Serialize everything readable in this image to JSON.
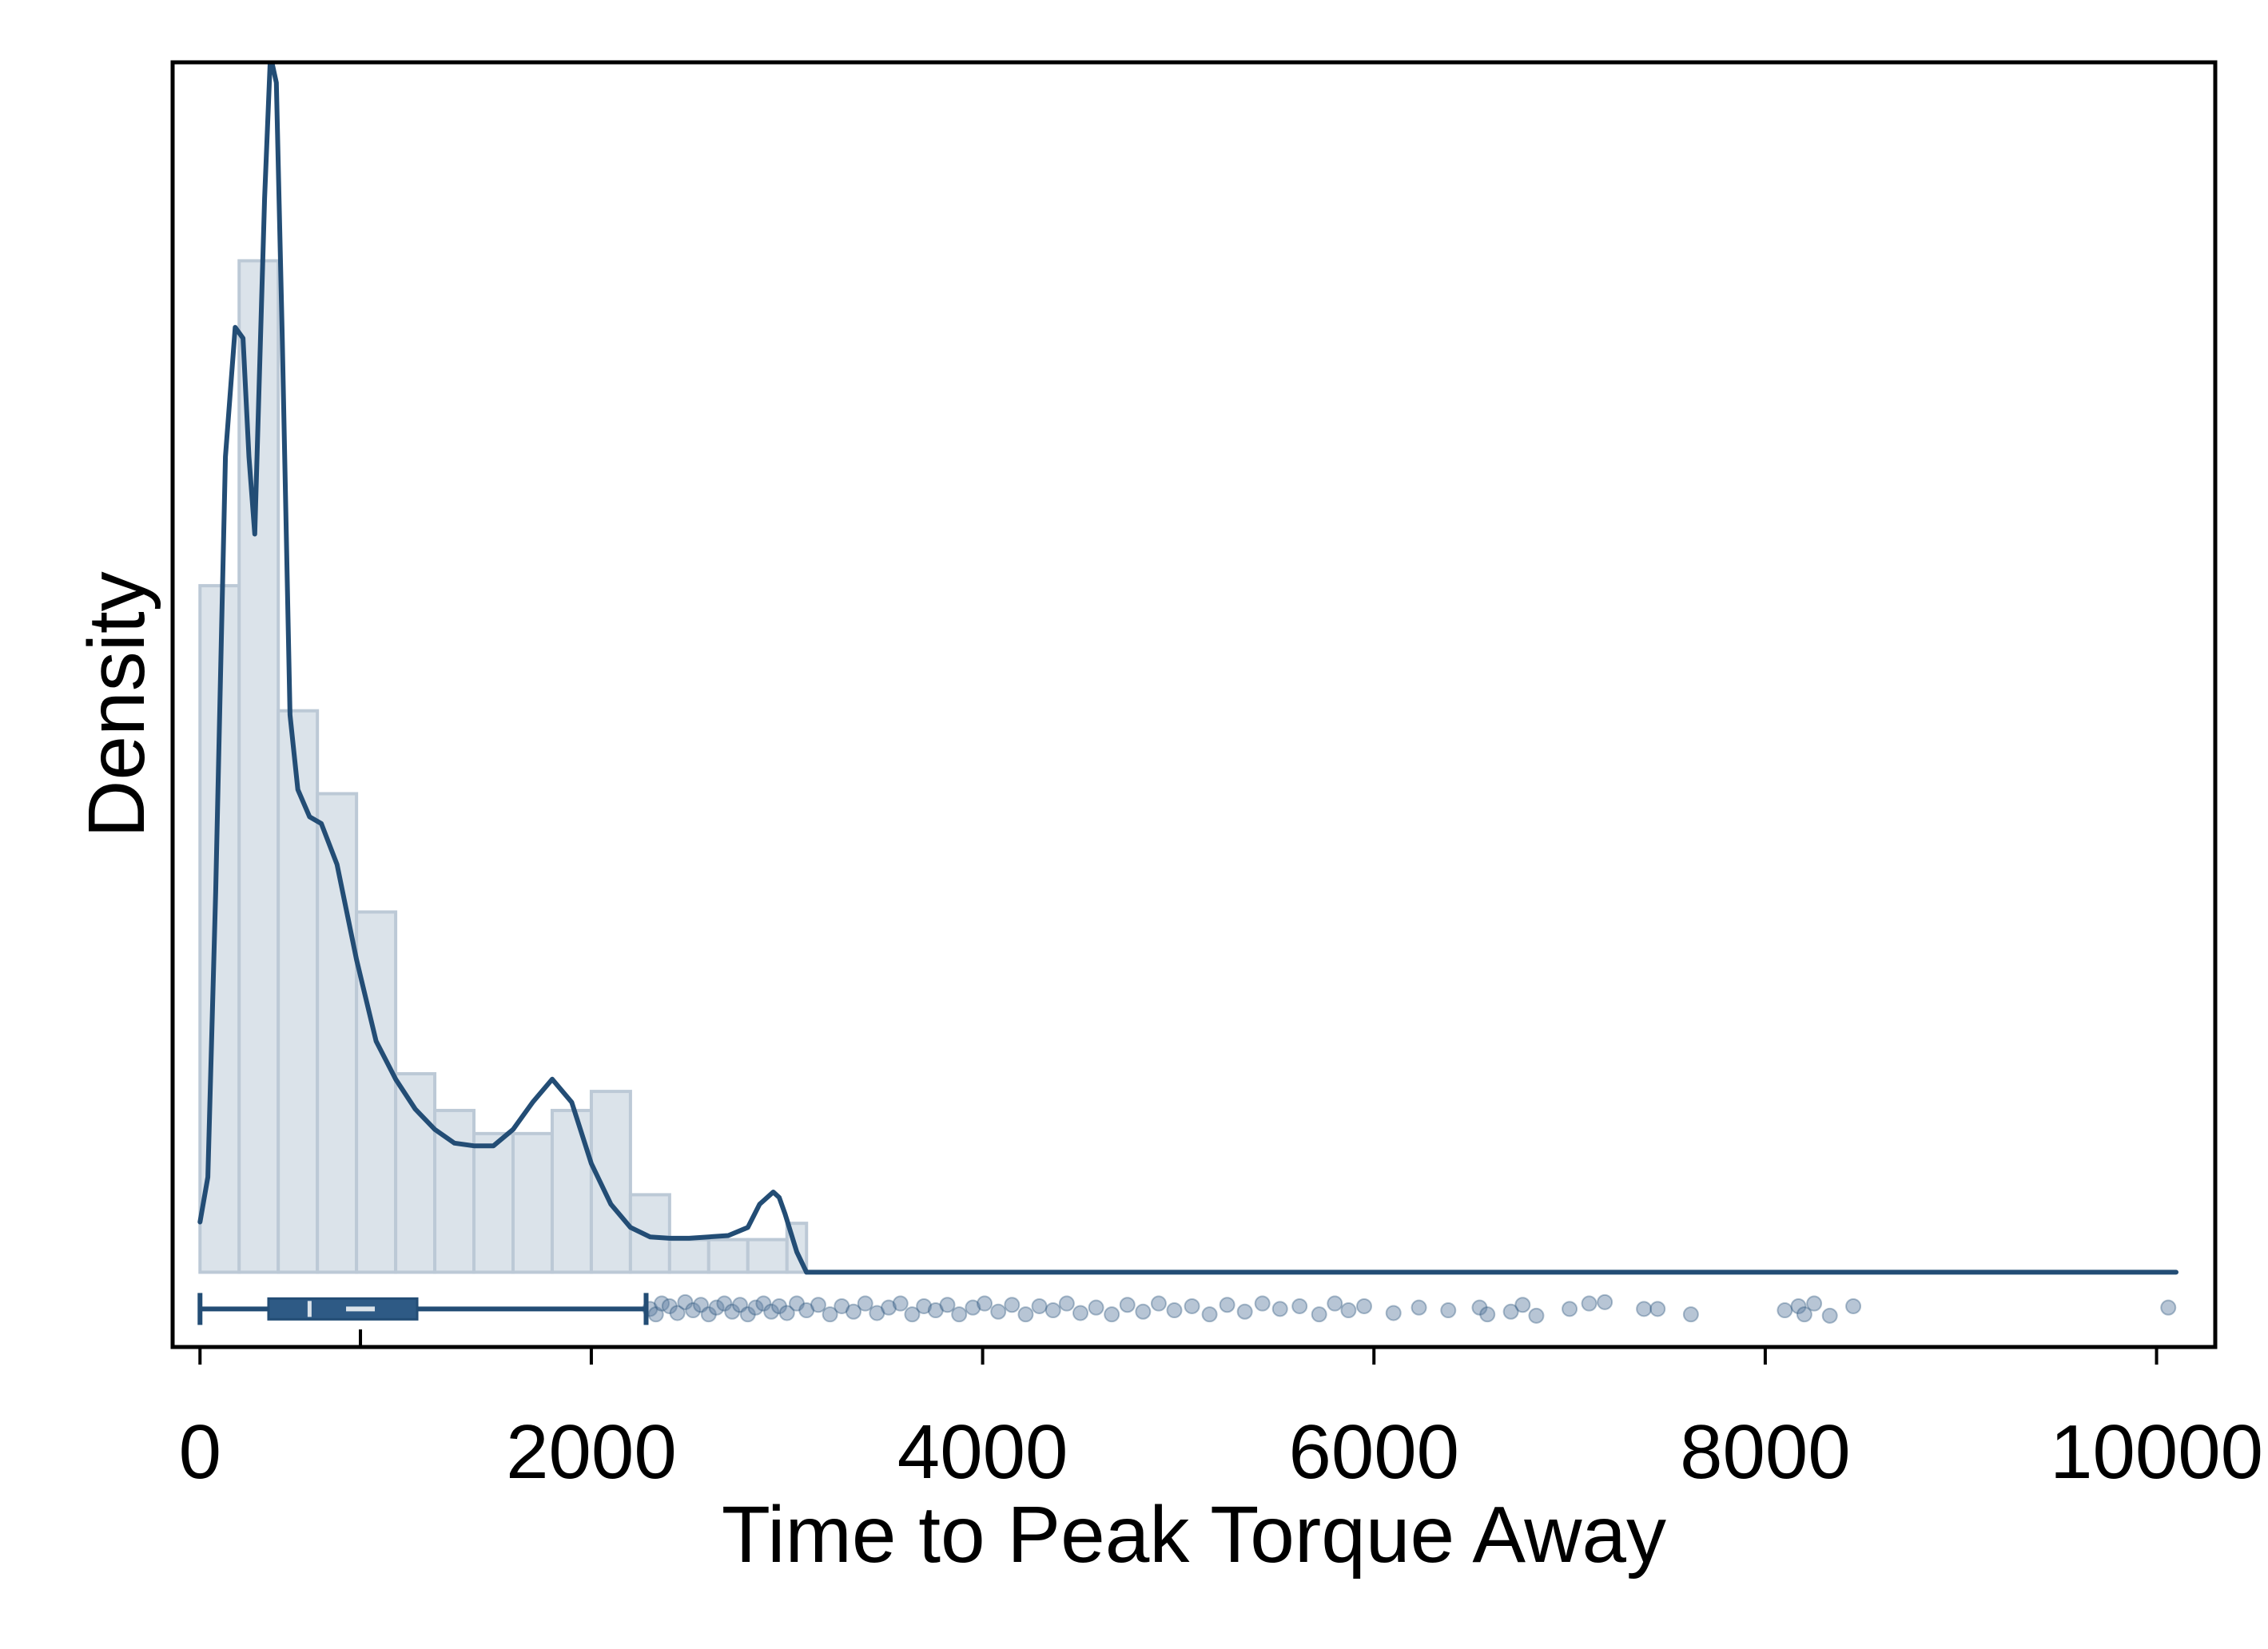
{
  "chart_data": {
    "type": "histogram",
    "xlabel": "Time to Peak Torque Away",
    "ylabel": "Density",
    "xlim": [
      -140,
      10300
    ],
    "ylim": [
      -0.055,
      0.89
    ],
    "x_ticks": [
      0,
      2000,
      4000,
      6000,
      8000,
      10000
    ],
    "x_tick_labels": [
      "0",
      "2000",
      "4000",
      "6000",
      "8000",
      "10000"
    ],
    "y_ticks_shown": false,
    "grid": false,
    "legend": "none",
    "colors": {
      "line": "#234d75",
      "bar_fill": "#dbe3ea",
      "bar_stroke": "#bcc9d6",
      "box_fill": "#2e5a85",
      "median_mark": "#dbe3ea",
      "point": "#5f7fa1"
    },
    "histogram": {
      "bin_width": 200,
      "bins": [
        {
          "x0": 0,
          "x1": 200,
          "density": 0.505
        },
        {
          "x0": 200,
          "x1": 400,
          "density": 0.744
        },
        {
          "x0": 400,
          "x1": 600,
          "density": 0.413
        },
        {
          "x0": 600,
          "x1": 800,
          "density": 0.352
        },
        {
          "x0": 800,
          "x1": 1000,
          "density": 0.265
        },
        {
          "x0": 1000,
          "x1": 1200,
          "density": 0.146
        },
        {
          "x0": 1200,
          "x1": 1400,
          "density": 0.119
        },
        {
          "x0": 1400,
          "x1": 1600,
          "density": 0.102
        },
        {
          "x0": 1600,
          "x1": 1800,
          "density": 0.102
        },
        {
          "x0": 1800,
          "x1": 2000,
          "density": 0.119
        },
        {
          "x0": 2000,
          "x1": 2200,
          "density": 0.133
        },
        {
          "x0": 2200,
          "x1": 2400,
          "density": 0.057
        },
        {
          "x0": 2400,
          "x1": 2600,
          "density": 0.024
        },
        {
          "x0": 2600,
          "x1": 2800,
          "density": 0.024
        },
        {
          "x0": 2800,
          "x1": 3000,
          "density": 0.024
        },
        {
          "x0": 3000,
          "x1": 3100,
          "density": 0.036
        }
      ]
    },
    "density_curve": {
      "x": [
        0,
        40,
        80,
        130,
        180,
        220,
        250,
        280,
        330,
        360,
        390,
        420,
        460,
        500,
        560,
        620,
        700,
        800,
        900,
        1000,
        1100,
        1200,
        1300,
        1400,
        1500,
        1600,
        1700,
        1800,
        1900,
        2000,
        2100,
        2200,
        2300,
        2400,
        2500,
        2600,
        2700,
        2800,
        2860,
        2930,
        2960,
        2990,
        3050,
        3100,
        10100
      ],
      "y": [
        0.037,
        0.07,
        0.28,
        0.6,
        0.695,
        0.687,
        0.6,
        0.543,
        0.79,
        0.895,
        0.875,
        0.69,
        0.41,
        0.355,
        0.335,
        0.33,
        0.3,
        0.23,
        0.17,
        0.142,
        0.12,
        0.105,
        0.095,
        0.093,
        0.093,
        0.105,
        0.125,
        0.142,
        0.125,
        0.08,
        0.05,
        0.033,
        0.026,
        0.025,
        0.025,
        0.026,
        0.027,
        0.033,
        0.05,
        0.059,
        0.055,
        0.043,
        0.015,
        0.0,
        0.0
      ]
    },
    "boxplot": {
      "y": -0.027,
      "whisker_low": 0,
      "q1": 350,
      "median": 560,
      "mean": 820,
      "q3": 1110,
      "whisker_high": 2280
    },
    "outliers": {
      "y": -0.027,
      "points": [
        {
          "x": 2300,
          "dy": 0.0
        },
        {
          "x": 2330,
          "dy": -0.004
        },
        {
          "x": 2360,
          "dy": 0.004
        },
        {
          "x": 2400,
          "dy": 0.002
        },
        {
          "x": 2440,
          "dy": -0.003
        },
        {
          "x": 2480,
          "dy": 0.005
        },
        {
          "x": 2520,
          "dy": -0.001
        },
        {
          "x": 2560,
          "dy": 0.003
        },
        {
          "x": 2600,
          "dy": -0.004
        },
        {
          "x": 2640,
          "dy": 0.001
        },
        {
          "x": 2680,
          "dy": 0.004
        },
        {
          "x": 2720,
          "dy": -0.002
        },
        {
          "x": 2760,
          "dy": 0.003
        },
        {
          "x": 2800,
          "dy": -0.004
        },
        {
          "x": 2840,
          "dy": 0.001
        },
        {
          "x": 2880,
          "dy": 0.004
        },
        {
          "x": 2920,
          "dy": -0.002
        },
        {
          "x": 2960,
          "dy": 0.002
        },
        {
          "x": 3000,
          "dy": -0.003
        },
        {
          "x": 3050,
          "dy": 0.004
        },
        {
          "x": 3100,
          "dy": -0.001
        },
        {
          "x": 3160,
          "dy": 0.003
        },
        {
          "x": 3220,
          "dy": -0.004
        },
        {
          "x": 3280,
          "dy": 0.002
        },
        {
          "x": 3340,
          "dy": -0.002
        },
        {
          "x": 3400,
          "dy": 0.004
        },
        {
          "x": 3460,
          "dy": -0.003
        },
        {
          "x": 3520,
          "dy": 0.001
        },
        {
          "x": 3580,
          "dy": 0.004
        },
        {
          "x": 3640,
          "dy": -0.004
        },
        {
          "x": 3700,
          "dy": 0.002
        },
        {
          "x": 3760,
          "dy": -0.001
        },
        {
          "x": 3820,
          "dy": 0.003
        },
        {
          "x": 3880,
          "dy": -0.004
        },
        {
          "x": 3950,
          "dy": 0.001
        },
        {
          "x": 4010,
          "dy": 0.004
        },
        {
          "x": 4080,
          "dy": -0.002
        },
        {
          "x": 4150,
          "dy": 0.003
        },
        {
          "x": 4220,
          "dy": -0.004
        },
        {
          "x": 4290,
          "dy": 0.002
        },
        {
          "x": 4360,
          "dy": -0.001
        },
        {
          "x": 4430,
          "dy": 0.004
        },
        {
          "x": 4500,
          "dy": -0.003
        },
        {
          "x": 4580,
          "dy": 0.001
        },
        {
          "x": 4660,
          "dy": -0.004
        },
        {
          "x": 4740,
          "dy": 0.003
        },
        {
          "x": 4820,
          "dy": -0.002
        },
        {
          "x": 4900,
          "dy": 0.004
        },
        {
          "x": 4980,
          "dy": -0.001
        },
        {
          "x": 5070,
          "dy": 0.002
        },
        {
          "x": 5160,
          "dy": -0.004
        },
        {
          "x": 5250,
          "dy": 0.003
        },
        {
          "x": 5340,
          "dy": -0.002
        },
        {
          "x": 5430,
          "dy": 0.004
        },
        {
          "x": 5520,
          "dy": 0.0
        },
        {
          "x": 5620,
          "dy": 0.002
        },
        {
          "x": 5720,
          "dy": -0.004
        },
        {
          "x": 5800,
          "dy": 0.004
        },
        {
          "x": 5870,
          "dy": -0.001
        },
        {
          "x": 5950,
          "dy": 0.002
        },
        {
          "x": 6100,
          "dy": -0.003
        },
        {
          "x": 6230,
          "dy": 0.001
        },
        {
          "x": 6380,
          "dy": -0.001
        },
        {
          "x": 6540,
          "dy": 0.001
        },
        {
          "x": 6580,
          "dy": -0.004
        },
        {
          "x": 6700,
          "dy": -0.002
        },
        {
          "x": 6760,
          "dy": 0.003
        },
        {
          "x": 6830,
          "dy": -0.005
        },
        {
          "x": 7000,
          "dy": 0.0
        },
        {
          "x": 7100,
          "dy": 0.004
        },
        {
          "x": 7180,
          "dy": 0.005
        },
        {
          "x": 7380,
          "dy": 0.0
        },
        {
          "x": 7450,
          "dy": 0.0
        },
        {
          "x": 7620,
          "dy": -0.004
        },
        {
          "x": 8100,
          "dy": -0.001
        },
        {
          "x": 8170,
          "dy": 0.002
        },
        {
          "x": 8200,
          "dy": -0.004
        },
        {
          "x": 8250,
          "dy": 0.004
        },
        {
          "x": 8330,
          "dy": -0.005
        },
        {
          "x": 8450,
          "dy": 0.002
        },
        {
          "x": 10060,
          "dy": 0.001
        }
      ]
    }
  }
}
